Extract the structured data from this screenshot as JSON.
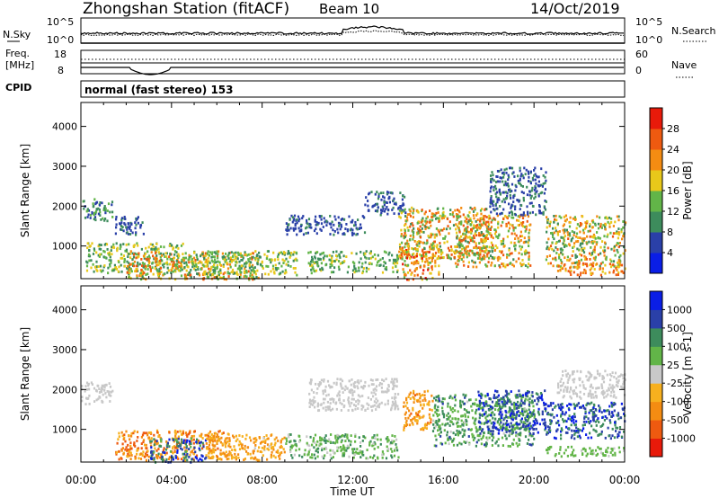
{
  "header": {
    "station": "Zhongshan Station (fitACF)",
    "beam": "Beam 10",
    "date": "14/Oct/2019"
  },
  "top_panels": {
    "noise": {
      "left_label": "N.Sky",
      "left_ticks": [
        "10^5",
        "10^0"
      ],
      "right_label": "N.Search",
      "right_ticks": [
        "10^5",
        "10^0"
      ]
    },
    "freq": {
      "left_label_1": "Freq.",
      "left_label_2": "[MHz]",
      "left_ticks": [
        "18",
        "8"
      ],
      "right_label": "Nave",
      "right_ticks": [
        "60",
        "0"
      ]
    },
    "cpid": {
      "label": "CPID",
      "text": "normal (fast stereo) 153"
    }
  },
  "colors": {
    "power": [
      "#0a1ee6",
      "#2a40a8",
      "#3d8c5c",
      "#62b548",
      "#e8c81a",
      "#f48c12",
      "#ee5a10",
      "#e81a0a"
    ],
    "velocity": [
      "#e81a0a",
      "#ee5a10",
      "#f48c12",
      "#f7b01e",
      "#c8c8c8",
      "#62b548",
      "#3d8c5c",
      "#2a40a8",
      "#0a1ee6"
    ]
  },
  "chart_data": [
    {
      "type": "heatmap",
      "name": "power",
      "xlabel": "",
      "ylabel": "Slant Range [km]",
      "x_ticks": [
        "00:00",
        "04:00",
        "08:00",
        "12:00",
        "16:00",
        "20:00",
        "00:00"
      ],
      "xlim": [
        0,
        24
      ],
      "ylim": [
        180,
        4600
      ],
      "y_ticks": [
        1000,
        2000,
        3000,
        4000
      ],
      "colorbar": {
        "label": "Power [dB]",
        "ticks": [
          "28",
          "24",
          "20",
          "16",
          "12",
          "8",
          "4"
        ],
        "range": [
          0,
          32
        ]
      },
      "scatter_regions": [
        {
          "t0": 0.0,
          "t1": 1.4,
          "r0": 1650,
          "r1": 2200,
          "v0": 5,
          "v1": 14
        },
        {
          "t0": 0.2,
          "t1": 4.5,
          "r0": 350,
          "r1": 1100,
          "v0": 8,
          "v1": 20
        },
        {
          "t0": 1.5,
          "t1": 2.8,
          "r0": 1300,
          "r1": 1800,
          "v0": 4,
          "v1": 9
        },
        {
          "t0": 2.0,
          "t1": 7.8,
          "r0": 180,
          "r1": 900,
          "v0": 10,
          "v1": 28
        },
        {
          "t0": 4.5,
          "t1": 9.5,
          "r0": 300,
          "r1": 900,
          "v0": 8,
          "v1": 20
        },
        {
          "t0": 9.0,
          "t1": 12.5,
          "r0": 1300,
          "r1": 1800,
          "v0": 4,
          "v1": 9
        },
        {
          "t0": 10.0,
          "t1": 14.0,
          "r0": 350,
          "r1": 900,
          "v0": 8,
          "v1": 18
        },
        {
          "t0": 12.5,
          "t1": 14.3,
          "r0": 1800,
          "r1": 2400,
          "v0": 4,
          "v1": 9
        },
        {
          "t0": 14.0,
          "t1": 18.0,
          "r0": 700,
          "r1": 2000,
          "v0": 10,
          "v1": 28
        },
        {
          "t0": 14.0,
          "t1": 15.8,
          "r0": 180,
          "r1": 1000,
          "v0": 12,
          "v1": 30
        },
        {
          "t0": 16.5,
          "t1": 19.8,
          "r0": 500,
          "r1": 1800,
          "v0": 10,
          "v1": 28
        },
        {
          "t0": 18.0,
          "t1": 20.5,
          "r0": 1800,
          "r1": 3000,
          "v0": 5,
          "v1": 10
        },
        {
          "t0": 20.5,
          "t1": 24.0,
          "r0": 500,
          "r1": 1800,
          "v0": 8,
          "v1": 26
        },
        {
          "t0": 21.0,
          "t1": 24.0,
          "r0": 300,
          "r1": 600,
          "v0": 16,
          "v1": 28
        }
      ]
    },
    {
      "type": "heatmap",
      "name": "velocity",
      "xlabel": "Time UT",
      "ylabel": "Slant Range [km]",
      "x_ticks": [
        "00:00",
        "04:00",
        "08:00",
        "12:00",
        "16:00",
        "20:00",
        "00:00"
      ],
      "xlim": [
        0,
        24
      ],
      "ylim": [
        180,
        4600
      ],
      "y_ticks": [
        1000,
        2000,
        3000,
        4000
      ],
      "colorbar": {
        "label": "Velocity [m s-1]",
        "ticks": [
          "1000",
          "500",
          "100",
          "25",
          "-25",
          "-100",
          "-500",
          "-1000"
        ],
        "range": [
          -1200,
          1200
        ]
      },
      "scatter_regions": [
        {
          "t0": 0.0,
          "t1": 1.4,
          "r0": 1650,
          "r1": 2200,
          "v0": -20,
          "v1": 20
        },
        {
          "t0": 1.5,
          "t1": 6.5,
          "r0": 250,
          "r1": 1000,
          "v0": -900,
          "v1": -150
        },
        {
          "t0": 3.0,
          "t1": 5.5,
          "r0": 200,
          "r1": 800,
          "v0": 300,
          "v1": 1100
        },
        {
          "t0": 5.5,
          "t1": 9.0,
          "r0": 250,
          "r1": 900,
          "v0": -600,
          "v1": -120
        },
        {
          "t0": 9.0,
          "t1": 14.0,
          "r0": 300,
          "r1": 900,
          "v0": 80,
          "v1": 500
        },
        {
          "t0": 10.0,
          "t1": 14.0,
          "r0": 1500,
          "r1": 2300,
          "v0": -20,
          "v1": 20
        },
        {
          "t0": 14.2,
          "t1": 15.5,
          "r0": 1000,
          "r1": 2000,
          "v0": -700,
          "v1": -150
        },
        {
          "t0": 15.5,
          "t1": 20.0,
          "r0": 600,
          "r1": 1900,
          "v0": 100,
          "v1": 700
        },
        {
          "t0": 17.5,
          "t1": 20.5,
          "r0": 900,
          "r1": 2000,
          "v0": 500,
          "v1": 1100
        },
        {
          "t0": 20.5,
          "t1": 24.0,
          "r0": 800,
          "r1": 1700,
          "v0": 400,
          "v1": 1100
        },
        {
          "t0": 20.5,
          "t1": 24.0,
          "r0": 350,
          "r1": 600,
          "v0": 100,
          "v1": 400
        },
        {
          "t0": 21.0,
          "t1": 24.0,
          "r0": 1800,
          "r1": 2500,
          "v0": -20,
          "v1": 20
        }
      ]
    }
  ]
}
